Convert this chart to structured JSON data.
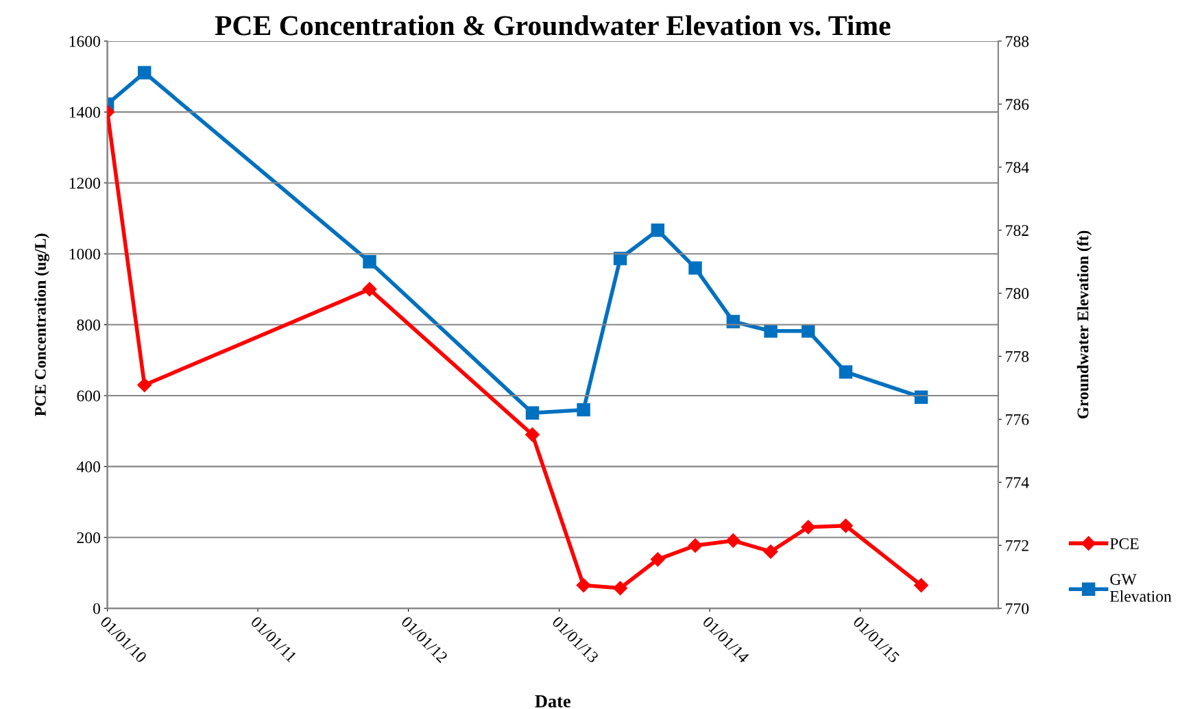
{
  "chart_data": {
    "type": "line",
    "title": "PCE Concentration & Groundwater Elevation vs. Time",
    "xlabel": "Date",
    "ylabel": "PCE Concentration (ug/L)",
    "y2label": "Groundwater Elevation (ft)",
    "x": [
      "2010-01-01",
      "2010-04-01",
      "2011-09-29",
      "2012-10-28",
      "2013-03-01",
      "2013-05-29",
      "2013-08-28",
      "2013-11-27",
      "2014-02-27",
      "2014-05-29",
      "2014-08-28",
      "2014-11-27",
      "2015-05-29"
    ],
    "series": [
      {
        "name": "PCE",
        "color": "#ff0000",
        "marker": "diamond",
        "values": [
          1400,
          630,
          900,
          490,
          65,
          57,
          138,
          177,
          191,
          160,
          229,
          233,
          65
        ]
      },
      {
        "name": "GW Elevation",
        "color": "#0070c0",
        "marker": "square",
        "axis": "y2",
        "values": [
          786.0,
          787.0,
          781.0,
          776.2,
          776.3,
          781.1,
          782.0,
          780.8,
          779.1,
          778.8,
          778.8,
          777.5,
          776.7
        ]
      }
    ],
    "xlim": [
      "2010-01-01",
      "2015-12-02"
    ],
    "xticks": [
      {
        "value": "2010-01-01",
        "label": "01/01/10"
      },
      {
        "value": "2011-01-01",
        "label": "01/01/11"
      },
      {
        "value": "2012-01-01",
        "label": "01/01/12"
      },
      {
        "value": "2013-01-01",
        "label": "01/01/13"
      },
      {
        "value": "2014-01-01",
        "label": "01/01/14"
      },
      {
        "value": "2015-01-01",
        "label": "01/01/15"
      }
    ],
    "ylim": [
      0,
      1600
    ],
    "yticks": [
      0,
      200,
      400,
      600,
      800,
      1000,
      1200,
      1400,
      1600
    ],
    "y2lim": [
      770,
      788
    ],
    "y2ticks": [
      770,
      772,
      774,
      776,
      778,
      780,
      782,
      784,
      786,
      788
    ],
    "grid": "y",
    "legend": "right",
    "line_style": "solid"
  }
}
